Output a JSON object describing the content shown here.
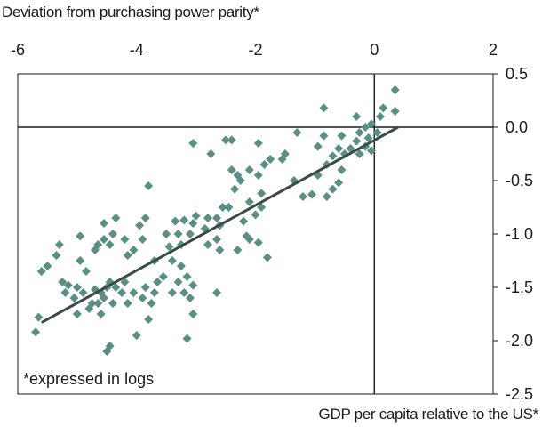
{
  "chart_data": {
    "type": "scatter",
    "title": "Deviation from purchasing power parity*",
    "xlabel": "GDP per capita relative to the US*",
    "ylabel": "",
    "annotation": "*expressed in logs",
    "xlim": [
      -6,
      2
    ],
    "ylim": [
      -2.5,
      0.5
    ],
    "x_ticks": [
      "-6",
      "-4",
      "-2",
      "0",
      "2"
    ],
    "x_tick_values": [
      -6,
      -4,
      -2,
      0,
      2
    ],
    "y_ticks": [
      "0.5",
      "0.0",
      "-0.5",
      "-1.0",
      "-1.5",
      "-2.0",
      "-2.5"
    ],
    "y_tick_values": [
      0.5,
      0.0,
      -0.5,
      -1.0,
      -1.5,
      -2.0,
      -2.5
    ],
    "x_axis_position": "top",
    "y_axis_position": "right",
    "grid": false,
    "reference_lines": {
      "horizontal_at_y": 0.0,
      "vertical_at_x": 0.0
    },
    "marker_color": "#5a8f86",
    "line_color": "#3a4a46",
    "trendline": {
      "x": [
        -5.6,
        0.4
      ],
      "y": [
        -1.83,
        0.0
      ]
    },
    "points": [
      {
        "x": 0.35,
        "y": 0.35
      },
      {
        "x": 0.35,
        "y": 0.15
      },
      {
        "x": 0.15,
        "y": 0.18
      },
      {
        "x": 0.1,
        "y": 0.1
      },
      {
        "x": -0.85,
        "y": 0.18
      },
      {
        "x": -0.3,
        "y": 0.1
      },
      {
        "x": -0.15,
        "y": 0.0
      },
      {
        "x": -0.05,
        "y": 0.03
      },
      {
        "x": 0.05,
        "y": -0.05
      },
      {
        "x": -0.25,
        "y": -0.05
      },
      {
        "x": -0.1,
        "y": -0.1
      },
      {
        "x": -0.3,
        "y": -0.13
      },
      {
        "x": -0.55,
        "y": -0.08
      },
      {
        "x": -0.85,
        "y": -0.08
      },
      {
        "x": -1.3,
        "y": -0.05
      },
      {
        "x": -0.95,
        "y": -0.18
      },
      {
        "x": -0.6,
        "y": -0.2
      },
      {
        "x": -0.4,
        "y": -0.2
      },
      {
        "x": -0.15,
        "y": -0.18
      },
      {
        "x": -0.05,
        "y": -0.22
      },
      {
        "x": -0.25,
        "y": -0.25
      },
      {
        "x": -0.5,
        "y": -0.25
      },
      {
        "x": -0.7,
        "y": -0.27
      },
      {
        "x": -0.8,
        "y": -0.35
      },
      {
        "x": -0.55,
        "y": -0.4
      },
      {
        "x": -0.95,
        "y": -0.45
      },
      {
        "x": -0.6,
        "y": -0.52
      },
      {
        "x": -0.7,
        "y": -0.58
      },
      {
        "x": -0.8,
        "y": -0.65
      },
      {
        "x": -1.05,
        "y": -0.63
      },
      {
        "x": -1.2,
        "y": -0.65
      },
      {
        "x": -1.35,
        "y": -0.5
      },
      {
        "x": -1.5,
        "y": -0.25
      },
      {
        "x": -1.55,
        "y": -0.3
      },
      {
        "x": -1.75,
        "y": -0.3
      },
      {
        "x": -1.85,
        "y": -0.35
      },
      {
        "x": -1.95,
        "y": -0.45
      },
      {
        "x": -2.1,
        "y": -0.4
      },
      {
        "x": -2.25,
        "y": -0.5
      },
      {
        "x": -2.4,
        "y": -0.4
      },
      {
        "x": -2.3,
        "y": -0.45
      },
      {
        "x": -1.95,
        "y": -0.15
      },
      {
        "x": -2.4,
        "y": -0.12
      },
      {
        "x": -2.5,
        "y": -0.12
      },
      {
        "x": -2.35,
        "y": -0.58
      },
      {
        "x": -2.45,
        "y": -0.75
      },
      {
        "x": -1.9,
        "y": -0.62
      },
      {
        "x": -1.9,
        "y": -0.75
      },
      {
        "x": -2.1,
        "y": -0.7
      },
      {
        "x": -2.0,
        "y": -0.82
      },
      {
        "x": -2.2,
        "y": -0.88
      },
      {
        "x": -2.15,
        "y": -1.02
      },
      {
        "x": -1.95,
        "y": -1.08
      },
      {
        "x": -1.8,
        "y": -1.22
      },
      {
        "x": -2.1,
        "y": -1.05
      },
      {
        "x": -2.3,
        "y": -1.15
      },
      {
        "x": -2.55,
        "y": -0.75
      },
      {
        "x": -2.65,
        "y": -0.85
      },
      {
        "x": -2.8,
        "y": -0.85
      },
      {
        "x": -2.75,
        "y": -0.25
      },
      {
        "x": -3.05,
        "y": -0.15
      },
      {
        "x": -2.6,
        "y": -0.92
      },
      {
        "x": -2.65,
        "y": -1.05
      },
      {
        "x": -2.6,
        "y": -1.15
      },
      {
        "x": -2.65,
        "y": -1.55
      },
      {
        "x": -2.8,
        "y": -1.1
      },
      {
        "x": -2.85,
        "y": -0.95
      },
      {
        "x": -3.0,
        "y": -0.83
      },
      {
        "x": -3.05,
        "y": -0.9
      },
      {
        "x": -3.2,
        "y": -0.87
      },
      {
        "x": -3.1,
        "y": -1.0
      },
      {
        "x": -3.25,
        "y": -1.1
      },
      {
        "x": -3.35,
        "y": -0.88
      },
      {
        "x": -3.3,
        "y": -1.0
      },
      {
        "x": -3.45,
        "y": -1.12
      },
      {
        "x": -3.5,
        "y": -1.0
      },
      {
        "x": -3.4,
        "y": -1.25
      },
      {
        "x": -3.25,
        "y": -1.3
      },
      {
        "x": -3.15,
        "y": -1.4
      },
      {
        "x": -3.05,
        "y": -1.48
      },
      {
        "x": -3.2,
        "y": -1.55
      },
      {
        "x": -3.1,
        "y": -1.6
      },
      {
        "x": -3.05,
        "y": -1.75
      },
      {
        "x": -3.15,
        "y": -1.98
      },
      {
        "x": -3.3,
        "y": -1.45
      },
      {
        "x": -3.4,
        "y": -1.55
      },
      {
        "x": -3.55,
        "y": -1.4
      },
      {
        "x": -3.65,
        "y": -1.45
      },
      {
        "x": -3.7,
        "y": -1.55
      },
      {
        "x": -3.75,
        "y": -1.65
      },
      {
        "x": -3.8,
        "y": -1.8
      },
      {
        "x": -3.7,
        "y": -1.25
      },
      {
        "x": -3.85,
        "y": -1.5
      },
      {
        "x": -3.9,
        "y": -1.6
      },
      {
        "x": -4.05,
        "y": -1.55
      },
      {
        "x": -3.8,
        "y": -0.55
      },
      {
        "x": -3.85,
        "y": -0.85
      },
      {
        "x": -3.95,
        "y": -0.92
      },
      {
        "x": -3.9,
        "y": -1.05
      },
      {
        "x": -4.05,
        "y": -1.15
      },
      {
        "x": -4.2,
        "y": -1.05
      },
      {
        "x": -4.15,
        "y": -1.2
      },
      {
        "x": -4.35,
        "y": -0.85
      },
      {
        "x": -4.4,
        "y": -1.0
      },
      {
        "x": -4.45,
        "y": -1.1
      },
      {
        "x": -4.55,
        "y": -0.9
      },
      {
        "x": -4.55,
        "y": -1.05
      },
      {
        "x": -4.65,
        "y": -1.1
      },
      {
        "x": -4.7,
        "y": -1.15
      },
      {
        "x": -4.2,
        "y": -1.45
      },
      {
        "x": -4.25,
        "y": -1.55
      },
      {
        "x": -4.35,
        "y": -1.5
      },
      {
        "x": -4.45,
        "y": -1.45
      },
      {
        "x": -4.5,
        "y": -1.5
      },
      {
        "x": -4.6,
        "y": -1.55
      },
      {
        "x": -4.65,
        "y": -1.65
      },
      {
        "x": -4.7,
        "y": -1.52
      },
      {
        "x": -4.55,
        "y": -1.6
      },
      {
        "x": -4.4,
        "y": -1.65
      },
      {
        "x": -4.15,
        "y": -1.65
      },
      {
        "x": -4.0,
        "y": -1.95
      },
      {
        "x": -4.45,
        "y": -2.05
      },
      {
        "x": -4.5,
        "y": -2.1
      },
      {
        "x": -4.6,
        "y": -1.75
      },
      {
        "x": -4.75,
        "y": -1.65
      },
      {
        "x": -4.8,
        "y": -1.7
      },
      {
        "x": -4.9,
        "y": -1.55
      },
      {
        "x": -4.85,
        "y": -1.35
      },
      {
        "x": -4.95,
        "y": -1.25
      },
      {
        "x": -4.95,
        "y": -1.02
      },
      {
        "x": -5.0,
        "y": -1.5
      },
      {
        "x": -5.05,
        "y": -1.6
      },
      {
        "x": -5.0,
        "y": -1.75
      },
      {
        "x": -5.15,
        "y": -1.48
      },
      {
        "x": -5.2,
        "y": -1.55
      },
      {
        "x": -5.25,
        "y": -1.45
      },
      {
        "x": -5.3,
        "y": -1.1
      },
      {
        "x": -5.35,
        "y": -1.2
      },
      {
        "x": -5.5,
        "y": -1.3
      },
      {
        "x": -5.6,
        "y": -1.35
      },
      {
        "x": -5.65,
        "y": -1.78
      },
      {
        "x": -5.7,
        "y": -1.92
      }
    ]
  }
}
